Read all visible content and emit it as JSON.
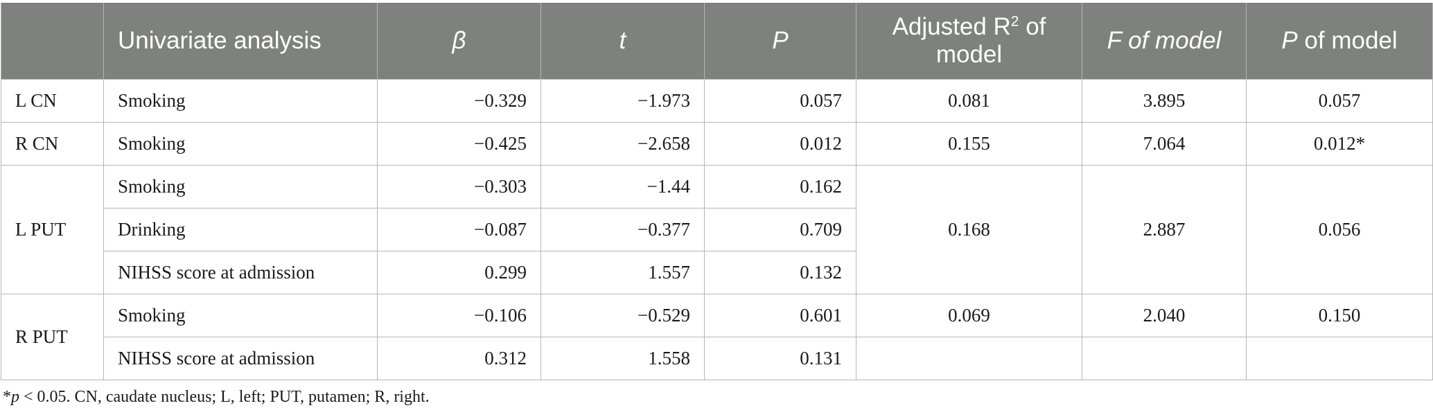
{
  "header": {
    "col0": "",
    "col1": "Univariate analysis",
    "col2": "β",
    "col3": "t",
    "col4": "P",
    "col5_pre": "Adjusted R",
    "col5_sup": "2",
    "col5_post": " of model",
    "col6": "F of model",
    "col7_p": "P",
    "col7_rest": " of model"
  },
  "rows": [
    {
      "region": "L CN",
      "variable": "Smoking",
      "beta": "−0.329",
      "t": "−1.973",
      "p": "0.057",
      "adj_r2": "0.081",
      "f": "3.895",
      "p_model": "0.057"
    },
    {
      "region": "R CN",
      "variable": "Smoking",
      "beta": "−0.425",
      "t": "−2.658",
      "p": "0.012",
      "adj_r2": "0.155",
      "f": "7.064",
      "p_model": "0.012*"
    },
    {
      "variable": "Smoking",
      "beta": "−0.303",
      "t": "−1.44",
      "p": "0.162"
    },
    {
      "variable": "Drinking",
      "beta": "−0.087",
      "t": "−0.377",
      "p": "0.709"
    },
    {
      "variable": "NIHSS score at admission",
      "beta": "0.299",
      "t": "1.557",
      "p": "0.132"
    },
    {
      "variable": "Smoking",
      "beta": "−0.106",
      "t": "−0.529",
      "p": "0.601"
    },
    {
      "variable": "NIHSS score at admission",
      "beta": "0.312",
      "t": "1.558",
      "p": "0.131"
    }
  ],
  "groups": {
    "lput": {
      "region": "L PUT",
      "adj_r2": "0.168",
      "f": "2.887",
      "p_model": "0.056"
    },
    "rput": {
      "region": "R PUT",
      "adj_r2": "0.069",
      "f": "2.040",
      "p_model": "0.150"
    }
  },
  "footnote": {
    "star": "*",
    "p": "p",
    "text": " < 0.05. CN, caudate nucleus; L, left; PUT, putamen; R, right."
  }
}
